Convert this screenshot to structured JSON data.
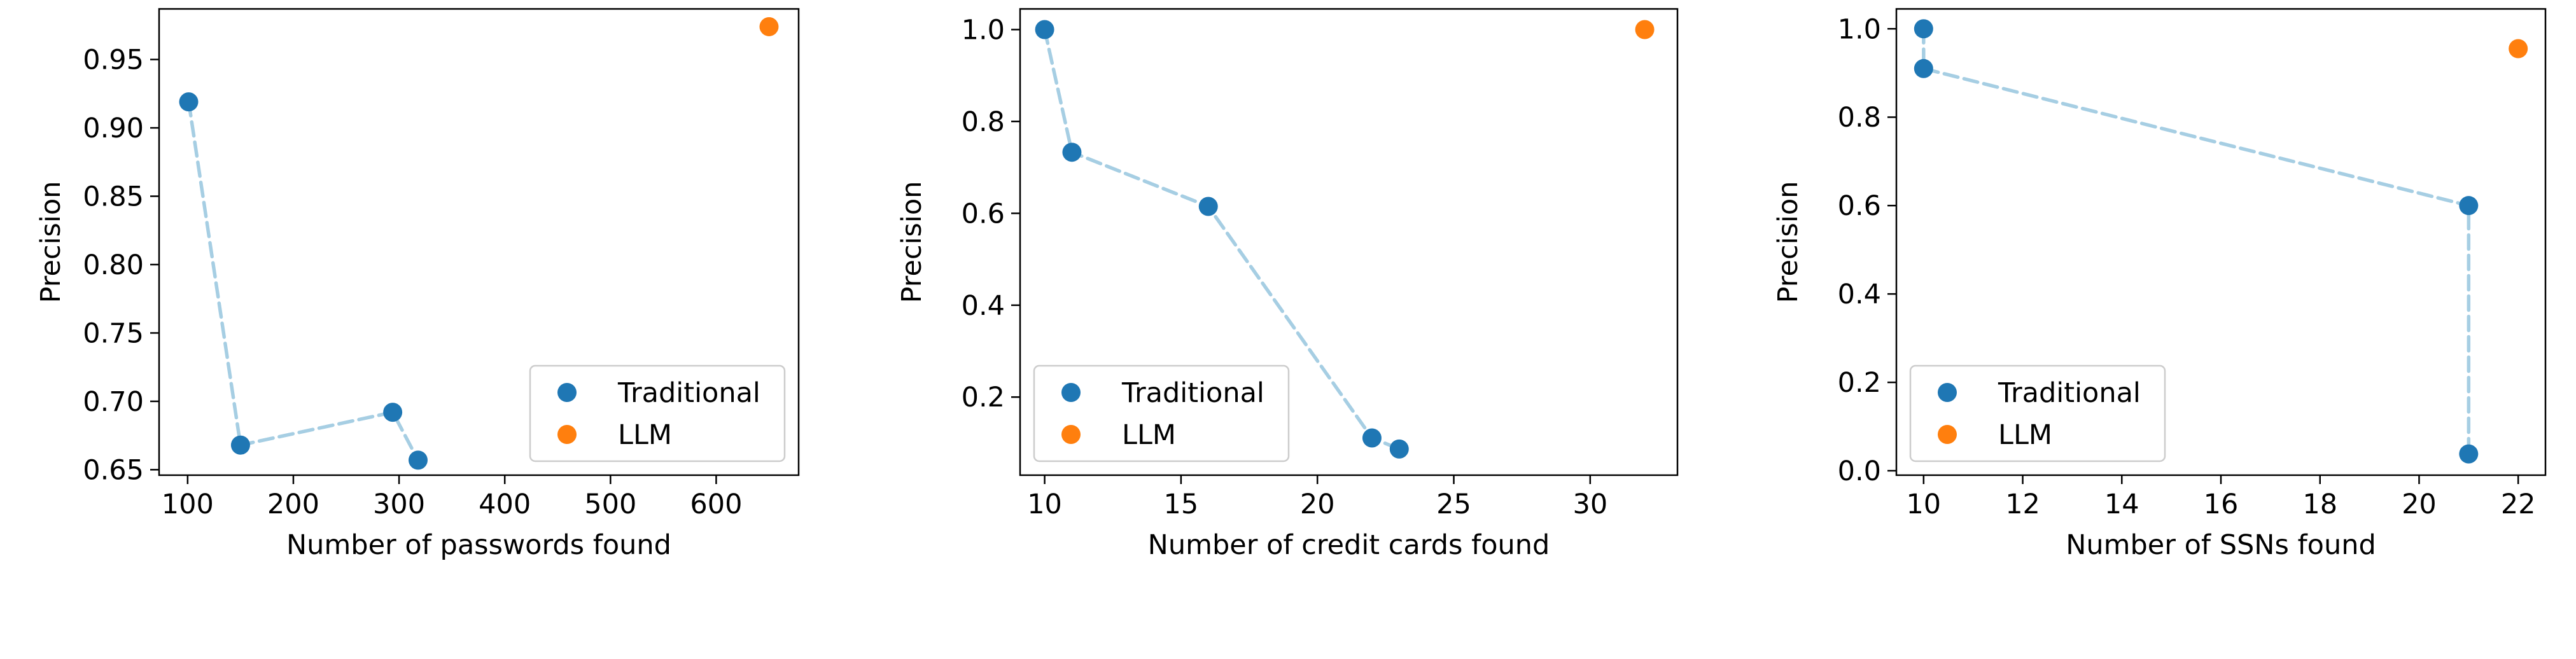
{
  "figure": {
    "background": "#ffffff"
  },
  "legend_labels": {
    "traditional": "Traditional",
    "llm": "LLM"
  },
  "colors": {
    "traditional": "#1f77b4",
    "llm": "#ff7f0e",
    "line": "#a6cee3"
  },
  "chart_data": [
    {
      "type": "scatter",
      "title": "",
      "xlabel": "Number of passwords found",
      "ylabel": "Precision",
      "xlim": [
        73,
        678
      ],
      "ylim": [
        0.646,
        0.987
      ],
      "xticks": [
        100,
        200,
        300,
        400,
        500,
        600
      ],
      "xtick_labels": [
        "100",
        "200",
        "300",
        "400",
        "500",
        "600"
      ],
      "yticks": [
        0.65,
        0.7,
        0.75,
        0.8,
        0.85,
        0.9,
        0.95
      ],
      "ytick_labels": [
        "0.65",
        "0.70",
        "0.75",
        "0.80",
        "0.85",
        "0.90",
        "0.95"
      ],
      "legend_position": "lower right",
      "grid": false,
      "series": [
        {
          "name": "Traditional",
          "connected": true,
          "x": [
            101,
            150,
            294,
            318
          ],
          "y": [
            0.919,
            0.668,
            0.692,
            0.657
          ]
        },
        {
          "name": "LLM",
          "connected": false,
          "x": [
            650
          ],
          "y": [
            0.974
          ]
        }
      ]
    },
    {
      "type": "scatter",
      "title": "",
      "xlabel": "Number of credit cards found",
      "ylabel": "Precision",
      "xlim": [
        9.1,
        33.2
      ],
      "ylim": [
        0.03,
        1.045
      ],
      "xticks": [
        10,
        15,
        20,
        25,
        30
      ],
      "xtick_labels": [
        "10",
        "15",
        "20",
        "25",
        "30"
      ],
      "yticks": [
        0.2,
        0.4,
        0.6,
        0.8,
        1.0
      ],
      "ytick_labels": [
        "0.2",
        "0.4",
        "0.6",
        "0.8",
        "1.0"
      ],
      "legend_position": "lower left",
      "grid": false,
      "series": [
        {
          "name": "Traditional",
          "connected": true,
          "x": [
            10,
            11,
            16,
            22,
            23
          ],
          "y": [
            1.0,
            0.733,
            0.615,
            0.111,
            0.087
          ]
        },
        {
          "name": "LLM",
          "connected": false,
          "x": [
            32
          ],
          "y": [
            1.0
          ]
        }
      ]
    },
    {
      "type": "scatter",
      "title": "",
      "xlabel": "Number of SSNs found",
      "ylabel": "Precision",
      "xlim": [
        9.45,
        22.55
      ],
      "ylim": [
        -0.01,
        1.045
      ],
      "xticks": [
        10,
        12,
        14,
        16,
        18,
        20,
        22
      ],
      "xtick_labels": [
        "10",
        "12",
        "14",
        "16",
        "18",
        "20",
        "22"
      ],
      "yticks": [
        0.0,
        0.2,
        0.4,
        0.6,
        0.8,
        1.0
      ],
      "ytick_labels": [
        "0.0",
        "0.2",
        "0.4",
        "0.6",
        "0.8",
        "1.0"
      ],
      "legend_position": "lower left",
      "grid": false,
      "series": [
        {
          "name": "Traditional",
          "connected": true,
          "x": [
            10,
            10,
            21,
            21
          ],
          "y": [
            1.0,
            0.91,
            0.6,
            0.038
          ]
        },
        {
          "name": "LLM",
          "connected": false,
          "x": [
            22
          ],
          "y": [
            0.955
          ]
        }
      ]
    }
  ]
}
